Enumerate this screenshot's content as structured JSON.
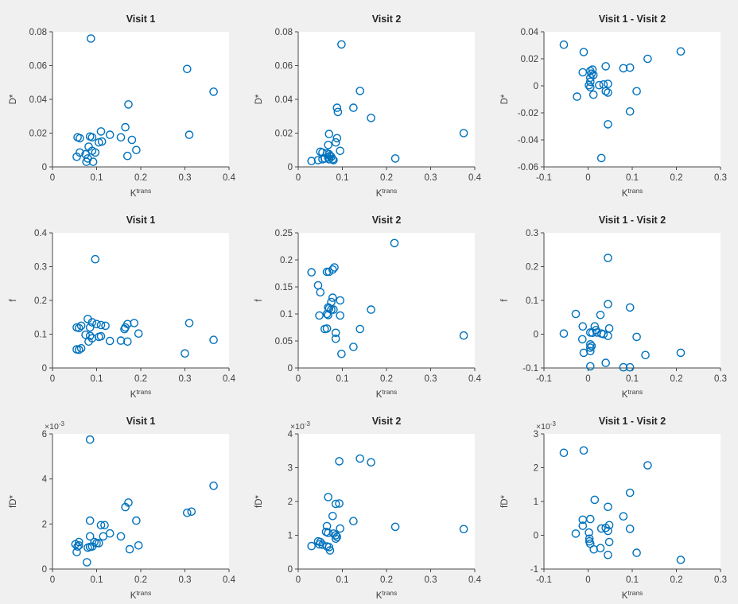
{
  "figure": {
    "background_color": "#f0f0f0",
    "plot_background_color": "#ffffff",
    "marker_color": "#0072BD",
    "axis_color": "#4a4a4a",
    "text_color": "#3f3f3f",
    "title_color": "#262626"
  },
  "chart_data": [
    {
      "type": "scatter",
      "row": 0,
      "col": 0,
      "title": "Visit 1",
      "xlabel_base": "K",
      "xlabel_sup": "trans",
      "ylabel": "D*",
      "xlim": [
        0,
        0.4
      ],
      "ylim": [
        0,
        0.08
      ],
      "xticks": [
        0,
        0.1,
        0.2,
        0.3,
        0.4
      ],
      "yticks": [
        0,
        0.02,
        0.04,
        0.06,
        0.08
      ],
      "y_multiplier": "",
      "grid": false,
      "legend": null,
      "x": [
        0.087,
        0.305,
        0.365,
        0.172,
        0.165,
        0.11,
        0.13,
        0.155,
        0.31,
        0.057,
        0.062,
        0.085,
        0.09,
        0.105,
        0.112,
        0.18,
        0.19,
        0.082,
        0.055,
        0.062,
        0.075,
        0.08,
        0.077,
        0.09,
        0.097,
        0.092,
        0.17
      ],
      "y": [
        0.076,
        0.058,
        0.0445,
        0.037,
        0.0235,
        0.021,
        0.019,
        0.0175,
        0.019,
        0.0175,
        0.017,
        0.018,
        0.0175,
        0.0145,
        0.015,
        0.016,
        0.01,
        0.012,
        0.006,
        0.0085,
        0.0075,
        0.005,
        0.003,
        0.0095,
        0.0085,
        0.003,
        0.0065
      ]
    },
    {
      "type": "scatter",
      "row": 0,
      "col": 1,
      "title": "Visit 2",
      "xlabel_base": "K",
      "xlabel_sup": "trans",
      "ylabel": "D*",
      "xlim": [
        0,
        0.4
      ],
      "ylim": [
        0,
        0.08
      ],
      "xticks": [
        0,
        0.1,
        0.2,
        0.3,
        0.4
      ],
      "yticks": [
        0,
        0.02,
        0.04,
        0.06,
        0.08
      ],
      "y_multiplier": "",
      "grid": false,
      "legend": null,
      "x": [
        0.098,
        0.14,
        0.125,
        0.088,
        0.09,
        0.165,
        0.375,
        0.07,
        0.088,
        0.085,
        0.068,
        0.22,
        0.095,
        0.05,
        0.055,
        0.065,
        0.07,
        0.072,
        0.075,
        0.068,
        0.06,
        0.055,
        0.07,
        0.078,
        0.03,
        0.045,
        0.08
      ],
      "y": [
        0.0725,
        0.045,
        0.035,
        0.035,
        0.0325,
        0.029,
        0.02,
        0.0195,
        0.017,
        0.0145,
        0.013,
        0.005,
        0.0095,
        0.009,
        0.0085,
        0.008,
        0.0075,
        0.0065,
        0.006,
        0.0055,
        0.005,
        0.0045,
        0.0045,
        0.0045,
        0.0035,
        0.004,
        0.004
      ]
    },
    {
      "type": "scatter",
      "row": 0,
      "col": 2,
      "title": "Visit 1 - Visit 2",
      "xlabel_base": "K",
      "xlabel_sup": "trans",
      "ylabel": "D*",
      "xlim": [
        -0.1,
        0.3
      ],
      "ylim": [
        -0.06,
        0.04
      ],
      "xticks": [
        -0.1,
        0,
        0.1,
        0.2,
        0.3
      ],
      "yticks": [
        -0.06,
        -0.04,
        -0.02,
        0,
        0.02,
        0.04
      ],
      "y_multiplier": "",
      "grid": false,
      "legend": null,
      "x": [
        -0.055,
        -0.01,
        0.21,
        0.135,
        0.04,
        0.08,
        0.095,
        -0.012,
        0.005,
        0.01,
        0.008,
        0.012,
        0.005,
        0.005,
        0.002,
        0.005,
        0.025,
        0.035,
        0.045,
        0.04,
        0.045,
        0.012,
        -0.025,
        0.11,
        0.095,
        0.045,
        0.03
      ],
      "y": [
        0.0305,
        0.025,
        0.0255,
        0.02,
        0.0145,
        0.013,
        0.0135,
        0.01,
        0.011,
        0.012,
        0.009,
        0.008,
        0.006,
        0.003,
        0.0005,
        -0.001,
        0.0005,
        0.001,
        0.0015,
        -0.004,
        -0.005,
        -0.0065,
        -0.008,
        -0.004,
        -0.019,
        -0.0285,
        -0.0535
      ]
    },
    {
      "type": "scatter",
      "row": 1,
      "col": 0,
      "title": "Visit 1",
      "xlabel_base": "K",
      "xlabel_sup": "trans",
      "ylabel": "f",
      "xlim": [
        0,
        0.4
      ],
      "ylim": [
        0,
        0.4
      ],
      "xticks": [
        0,
        0.1,
        0.2,
        0.3,
        0.4
      ],
      "yticks": [
        0,
        0.1,
        0.2,
        0.3,
        0.4
      ],
      "y_multiplier": "",
      "grid": false,
      "legend": null,
      "x": [
        0.097,
        0.08,
        0.09,
        0.1,
        0.055,
        0.06,
        0.065,
        0.085,
        0.11,
        0.12,
        0.165,
        0.17,
        0.163,
        0.185,
        0.195,
        0.31,
        0.075,
        0.085,
        0.09,
        0.105,
        0.11,
        0.082,
        0.13,
        0.155,
        0.17,
        0.365,
        0.055,
        0.06,
        0.065,
        0.3
      ],
      "y": [
        0.322,
        0.145,
        0.135,
        0.13,
        0.12,
        0.118,
        0.125,
        0.12,
        0.127,
        0.125,
        0.12,
        0.13,
        0.115,
        0.133,
        0.102,
        0.133,
        0.098,
        0.095,
        0.088,
        0.092,
        0.094,
        0.078,
        0.08,
        0.081,
        0.078,
        0.083,
        0.055,
        0.054,
        0.058,
        0.043
      ]
    },
    {
      "type": "scatter",
      "row": 1,
      "col": 1,
      "title": "Visit 2",
      "xlabel_base": "K",
      "xlabel_sup": "trans",
      "ylabel": "f",
      "xlim": [
        0,
        0.4
      ],
      "ylim": [
        0,
        0.25
      ],
      "xticks": [
        0,
        0.1,
        0.2,
        0.3,
        0.4
      ],
      "yticks": [
        0,
        0.05,
        0.1,
        0.15,
        0.2,
        0.25
      ],
      "y_multiplier": "",
      "grid": false,
      "legend": null,
      "x": [
        0.218,
        0.082,
        0.078,
        0.065,
        0.07,
        0.03,
        0.045,
        0.05,
        0.078,
        0.075,
        0.095,
        0.068,
        0.07,
        0.075,
        0.08,
        0.165,
        0.048,
        0.065,
        0.068,
        0.095,
        0.06,
        0.065,
        0.14,
        0.085,
        0.085,
        0.375,
        0.125,
        0.098
      ],
      "y": [
        0.231,
        0.186,
        0.182,
        0.178,
        0.178,
        0.177,
        0.153,
        0.14,
        0.13,
        0.122,
        0.125,
        0.112,
        0.11,
        0.108,
        0.108,
        0.108,
        0.097,
        0.1,
        0.098,
        0.097,
        0.072,
        0.073,
        0.072,
        0.065,
        0.054,
        0.06,
        0.039,
        0.026
      ]
    },
    {
      "type": "scatter",
      "row": 1,
      "col": 2,
      "title": "Visit 1 - Visit 2",
      "xlabel_base": "K",
      "xlabel_sup": "trans",
      "ylabel": "f",
      "xlim": [
        -0.1,
        0.3
      ],
      "ylim": [
        -0.1,
        0.3
      ],
      "xticks": [
        -0.1,
        0,
        0.1,
        0.2,
        0.3
      ],
      "yticks": [
        -0.1,
        0,
        0.1,
        0.2,
        0.3
      ],
      "y_multiplier": "",
      "grid": false,
      "legend": null,
      "x": [
        0.045,
        0.045,
        0.095,
        -0.028,
        0.028,
        -0.012,
        0.015,
        0.018,
        0.048,
        -0.055,
        0.005,
        0.01,
        0.02,
        0.03,
        0.035,
        0.045,
        0.11,
        -0.013,
        0.005,
        0.008,
        0.005,
        -0.01,
        0.005,
        0.13,
        0.21,
        0.04,
        0.005,
        0.08,
        0.095
      ],
      "y": [
        0.226,
        0.089,
        0.079,
        0.06,
        0.057,
        0.023,
        0.023,
        0.012,
        0.017,
        0.002,
        0.005,
        0.004,
        0.005,
        0.002,
        0.0,
        -0.005,
        -0.008,
        -0.015,
        -0.03,
        -0.035,
        -0.04,
        -0.055,
        -0.05,
        -0.062,
        -0.055,
        -0.085,
        -0.095,
        -0.098,
        -0.098
      ]
    },
    {
      "type": "scatter",
      "row": 2,
      "col": 0,
      "title": "Visit 1",
      "xlabel_base": "K",
      "xlabel_sup": "trans",
      "ylabel": "fD*",
      "xlim": [
        0,
        0.4
      ],
      "ylim": [
        0,
        6
      ],
      "xticks": [
        0,
        0.1,
        0.2,
        0.3,
        0.4
      ],
      "yticks": [
        0,
        2,
        4,
        6
      ],
      "y_multiplier": "×10",
      "y_multiplier_exp": "-3",
      "grid": false,
      "legend": null,
      "x": [
        0.085,
        0.365,
        0.172,
        0.165,
        0.305,
        0.315,
        0.085,
        0.19,
        0.11,
        0.118,
        0.13,
        0.085,
        0.155,
        0.115,
        0.06,
        0.06,
        0.095,
        0.1,
        0.105,
        0.08,
        0.085,
        0.09,
        0.055,
        0.175,
        0.195,
        0.078,
        0.052,
        0.057
      ],
      "y": [
        5.75,
        3.7,
        2.95,
        2.75,
        2.5,
        2.55,
        2.15,
        2.15,
        1.95,
        1.95,
        1.58,
        1.45,
        1.45,
        1.45,
        1.2,
        1.05,
        1.2,
        1.15,
        1.15,
        0.95,
        0.98,
        1.0,
        0.75,
        0.88,
        1.05,
        0.3,
        1.1,
        1.0
      ]
    },
    {
      "type": "scatter",
      "row": 2,
      "col": 1,
      "title": "Visit 2",
      "xlabel_base": "K",
      "xlabel_sup": "trans",
      "ylabel": "fD*",
      "xlim": [
        0,
        0.4
      ],
      "ylim": [
        0,
        4
      ],
      "xticks": [
        0,
        0.1,
        0.2,
        0.3,
        0.4
      ],
      "yticks": [
        0,
        1,
        2,
        3,
        4
      ],
      "y_multiplier": "×10",
      "y_multiplier_exp": "-3",
      "grid": false,
      "legend": null,
      "x": [
        0.14,
        0.165,
        0.093,
        0.068,
        0.085,
        0.093,
        0.078,
        0.125,
        0.22,
        0.375,
        0.095,
        0.065,
        0.063,
        0.068,
        0.08,
        0.085,
        0.088,
        0.085,
        0.045,
        0.05,
        0.048,
        0.055,
        0.03,
        0.065,
        0.07,
        0.072
      ],
      "y": [
        3.27,
        3.16,
        3.19,
        2.13,
        1.93,
        1.94,
        1.57,
        1.42,
        1.25,
        1.18,
        1.2,
        1.27,
        1.1,
        1.07,
        1.05,
        1.0,
        0.95,
        0.9,
        0.82,
        0.8,
        0.73,
        0.72,
        0.68,
        0.67,
        0.65,
        0.55
      ]
    },
    {
      "type": "scatter",
      "row": 2,
      "col": 2,
      "title": "Visit 1 - Visit 2",
      "xlabel_base": "K",
      "xlabel_sup": "trans",
      "ylabel": "fD*",
      "xlim": [
        -0.1,
        0.3
      ],
      "ylim": [
        -1,
        3
      ],
      "xticks": [
        -0.1,
        0,
        0.1,
        0.2,
        0.3
      ],
      "yticks": [
        -1,
        0,
        1,
        2,
        3
      ],
      "y_multiplier": "×10",
      "y_multiplier_exp": "-3",
      "grid": false,
      "legend": null,
      "x": [
        -0.055,
        -0.01,
        0.135,
        0.095,
        0.015,
        0.045,
        0.08,
        -0.012,
        0.005,
        -0.012,
        0.03,
        0.04,
        0.048,
        0.045,
        0.095,
        -0.028,
        0.002,
        0.003,
        0.003,
        0.005,
        0.048,
        0.013,
        0.028,
        0.045,
        0.11,
        0.21
      ],
      "y": [
        2.44,
        2.51,
        2.07,
        1.26,
        1.05,
        0.84,
        0.56,
        0.46,
        0.48,
        0.28,
        0.2,
        0.22,
        0.3,
        0.13,
        0.19,
        0.05,
        0.08,
        -0.1,
        -0.18,
        -0.25,
        -0.2,
        -0.42,
        -0.38,
        -0.58,
        -0.52,
        -0.73
      ]
    }
  ]
}
